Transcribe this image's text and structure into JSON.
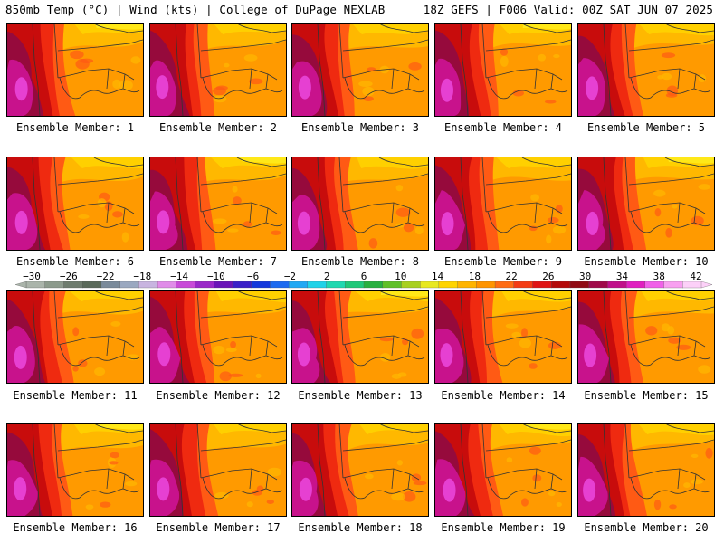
{
  "header": {
    "left": "850mb Temp (°C) | Wind (kts) | College of DuPage NEXLAB",
    "right": "18Z GEFS | F006 Valid: 00Z SAT JUN 07 2025"
  },
  "members": [
    {
      "label": "Ensemble Member: 1",
      "icon": "temperature-map"
    },
    {
      "label": "Ensemble Member: 2",
      "icon": "temperature-map"
    },
    {
      "label": "Ensemble Member: 3",
      "icon": "temperature-map"
    },
    {
      "label": "Ensemble Member: 4",
      "icon": "temperature-map"
    },
    {
      "label": "Ensemble Member: 5",
      "icon": "temperature-map"
    },
    {
      "label": "Ensemble Member: 6",
      "icon": "temperature-map"
    },
    {
      "label": "Ensemble Member: 7",
      "icon": "temperature-map"
    },
    {
      "label": "Ensemble Member: 8",
      "icon": "temperature-map"
    },
    {
      "label": "Ensemble Member: 9",
      "icon": "temperature-map"
    },
    {
      "label": "Ensemble Member: 10",
      "icon": "temperature-map"
    },
    {
      "label": "Ensemble Member: 11",
      "icon": "temperature-map"
    },
    {
      "label": "Ensemble Member: 12",
      "icon": "temperature-map"
    },
    {
      "label": "Ensemble Member: 13",
      "icon": "temperature-map"
    },
    {
      "label": "Ensemble Member: 14",
      "icon": "temperature-map"
    },
    {
      "label": "Ensemble Member: 15",
      "icon": "temperature-map"
    },
    {
      "label": "Ensemble Member: 16",
      "icon": "temperature-map"
    },
    {
      "label": "Ensemble Member: 17",
      "icon": "temperature-map"
    },
    {
      "label": "Ensemble Member: 18",
      "icon": "temperature-map"
    },
    {
      "label": "Ensemble Member: 19",
      "icon": "temperature-map"
    },
    {
      "label": "Ensemble Member: 20",
      "icon": "temperature-map"
    }
  ],
  "colorbar": {
    "labels": [
      "−30",
      "−26",
      "−22",
      "−18",
      "−14",
      "−10",
      "−6",
      "−2",
      "2",
      "6",
      "10",
      "14",
      "18",
      "22",
      "26",
      "30",
      "34",
      "38",
      "42"
    ],
    "colors": [
      "#aab4aa",
      "#8c9a8c",
      "#6e7c6e",
      "#5a6a5a",
      "#7a8a9a",
      "#9aa8c0",
      "#c8b4e0",
      "#e08ce8",
      "#c84ad8",
      "#9a28c8",
      "#6a14b8",
      "#3a20c8",
      "#1438dc",
      "#1c6af0",
      "#20a8f4",
      "#20d2e8",
      "#20d8b0",
      "#20c878",
      "#28b040",
      "#60c028",
      "#a8d020",
      "#e8e820",
      "#ffd400",
      "#ffb400",
      "#ff9400",
      "#ff6c14",
      "#f43c14",
      "#e01414",
      "#b40a0a",
      "#900a14",
      "#a00a4a",
      "#c0108a",
      "#e020c0",
      "#f060e8",
      "#f8a0f0",
      "#fcd0f8"
    ],
    "zones": {
      "deep": "#960a3c",
      "dark-red": "#c80c0c",
      "red": "#ef2a10",
      "red-orange": "#ff5a14",
      "orange": "#ff9a00",
      "light-orange": "#ffb800",
      "yellow-orange": "#ffd000",
      "yellow": "#ffe818",
      "magenta": "#c8128c",
      "pink": "#e640d2"
    }
  }
}
